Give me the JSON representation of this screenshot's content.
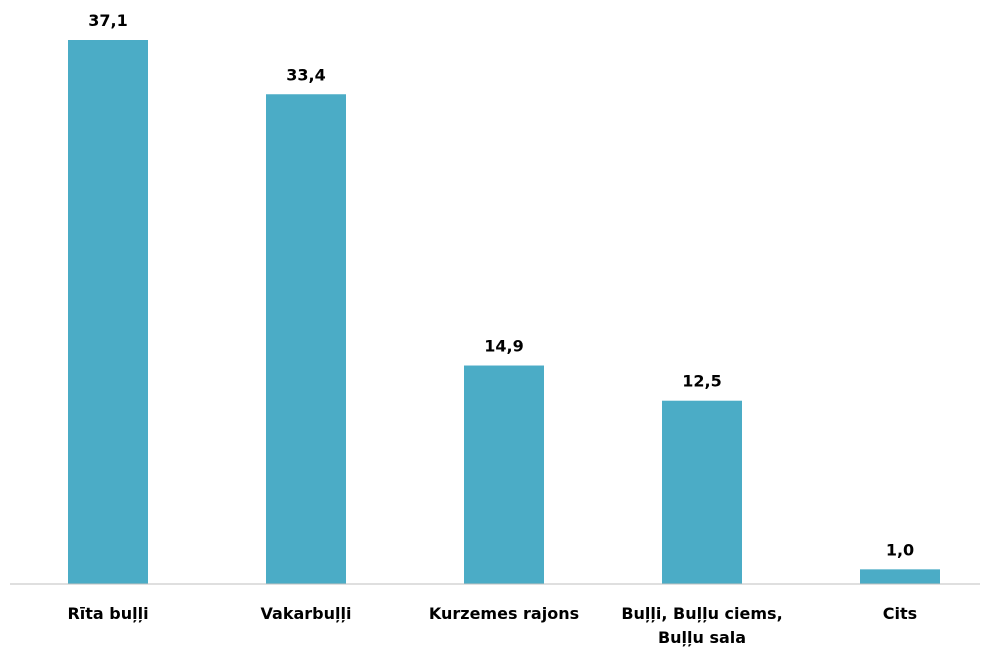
{
  "chart_data": {
    "type": "bar",
    "categories": [
      "Rīta buļļi",
      "Vakarbuļļi",
      "Kurzemes rajons",
      "Buļļi, Buļļu ciems, Buļļu sala",
      "Cits"
    ],
    "values": [
      37.1,
      33.4,
      14.9,
      12.5,
      1.0
    ],
    "value_labels": [
      "37,1",
      "33,4",
      "14,9",
      "12,5",
      "1,0"
    ],
    "color": "#4bacc6"
  }
}
